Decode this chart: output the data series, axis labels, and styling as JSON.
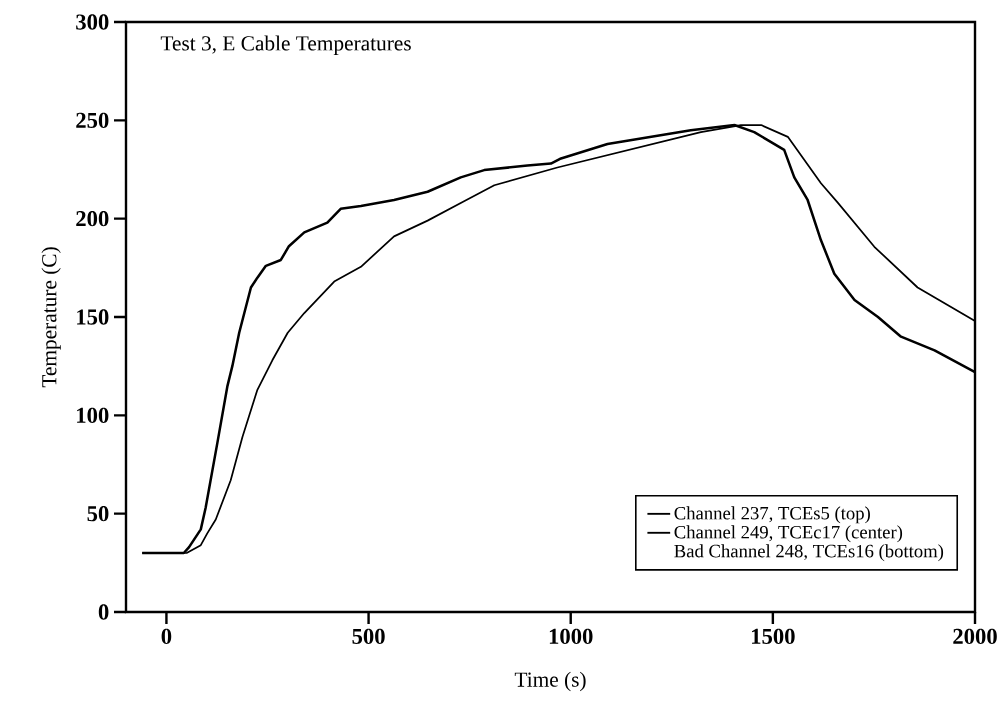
{
  "chart_data": {
    "type": "line",
    "title": "Test 3, E Cable Temperatures",
    "xlabel": "Time (s)",
    "ylabel": "Temperature (C)",
    "xlim": [
      -100,
      2000
    ],
    "xticks": [
      0,
      500,
      1000,
      1500,
      2000
    ],
    "ylim": [
      0,
      300
    ],
    "yticks": [
      0,
      50,
      100,
      150,
      200,
      250,
      300
    ],
    "grid": false,
    "legend": "bottom right",
    "line_style": "solid",
    "marker": "none",
    "annotations": [
      "Bad Channel 248, TCEs16 (bottom)"
    ],
    "series": [
      {
        "name": "Channel 237, TCEs5 (top)",
        "color": "#000000",
        "x": [
          -60,
          43,
          56,
          85,
          97,
          126,
          151,
          163,
          180,
          209,
          225,
          246,
          283,
          303,
          341,
          398,
          431,
          481,
          563,
          646,
          728,
          786,
          893,
          951,
          976,
          1091,
          1297,
          1405,
          1454,
          1528,
          1553,
          1586,
          1619,
          1652,
          1702,
          1760,
          1817,
          1900,
          2000
        ],
        "values": [
          30,
          30,
          33,
          42,
          53,
          86,
          115,
          125,
          142,
          165,
          170,
          176,
          179,
          186,
          193,
          198,
          205,
          206.5,
          209.5,
          213.7,
          221,
          224.7,
          227,
          228,
          230.6,
          238,
          245,
          247.6,
          244,
          235,
          221,
          209.5,
          189,
          172,
          158.6,
          150,
          140,
          133,
          122
        ]
      },
      {
        "name": "Channel 249, TCEc17 (center)",
        "color": "#000000",
        "x": [
          -60,
          50,
          85,
          101,
          122,
          159,
          188,
          225,
          262,
          300,
          341,
          415,
          481,
          563,
          646,
          728,
          811,
          967,
          1322,
          1421,
          1471,
          1537,
          1619,
          1661,
          1751,
          1858,
          2000
        ],
        "values": [
          30,
          30,
          34,
          40,
          47,
          67,
          89,
          113,
          128,
          142,
          152,
          168,
          175.5,
          191,
          199,
          208,
          217,
          226,
          244,
          247.6,
          247.6,
          241.6,
          218,
          208,
          185.7,
          165,
          148
        ]
      }
    ]
  }
}
